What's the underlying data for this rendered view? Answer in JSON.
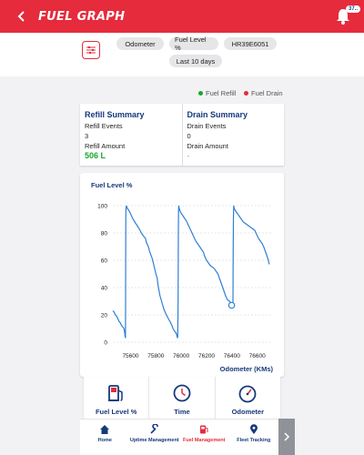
{
  "header": {
    "title": "FUEL GRAPH",
    "notification_count": "37..",
    "color": "#e52b3c"
  },
  "filters": {
    "chips": [
      "Odometer",
      "Fuel Level %",
      "HR39E6051",
      "Last 10 days"
    ]
  },
  "legend": {
    "refill_label": "Fuel Refill",
    "refill_color": "#18a82c",
    "drain_label": "Fuel Drain",
    "drain_color": "#e52b3c"
  },
  "refill_summary": {
    "title": "Refill Summary",
    "events_label": "Refill Events",
    "events_value": "3",
    "amount_label": "Refill Amount",
    "amount_value": "506 L"
  },
  "drain_summary": {
    "title": "Drain Summary",
    "events_label": "Drain Events",
    "events_value": "0",
    "amount_label": "Drain Amount",
    "amount_value": "-"
  },
  "chart_data": {
    "type": "line",
    "title": "Fuel Level %",
    "xlabel": "Odometer (KMs)",
    "ylabel": "",
    "xlim": [
      75460,
      76710
    ],
    "ylim": [
      0,
      100
    ],
    "x_ticks": [
      75600,
      75800,
      76000,
      76200,
      76400,
      76600
    ],
    "y_ticks": [
      0,
      20,
      40,
      60,
      80,
      100
    ],
    "grid": true,
    "line_color": "#2f7fd6",
    "series": [
      {
        "x": [
          75460,
          75470,
          75480,
          75490,
          75500,
          75510,
          75520,
          75530,
          75540,
          75548,
          75552,
          75555,
          75558,
          75560,
          75562,
          75563,
          75566,
          75575,
          75590,
          75605,
          75620,
          75640,
          75655,
          75668,
          75685,
          75700,
          75718,
          75725,
          75740,
          75752,
          75768,
          75780,
          75790,
          75800,
          75810,
          75815,
          75822,
          75832,
          75848,
          75860,
          75872,
          75888,
          75900,
          75912,
          75928,
          75935,
          75948,
          75958,
          75965,
          75970,
          75972,
          75975,
          75977,
          75979,
          75980,
          75984,
          75995,
          76010,
          76025,
          76040,
          76055,
          76070,
          76085,
          76100,
          76115,
          76130,
          76145,
          76160,
          76175,
          76185,
          76200,
          76215,
          76230,
          76245,
          76260,
          76275,
          76290,
          76305,
          76320,
          76335,
          76350,
          76365,
          76380,
          76390,
          76398,
          76404,
          76408,
          76410,
          76412,
          76414,
          76418,
          76430,
          76445,
          76460,
          76475,
          76490,
          76505,
          76520,
          76535,
          76550,
          76565,
          76580,
          76595,
          76610,
          76625,
          76640,
          76655,
          76670,
          76685,
          76695
        ],
        "y": [
          23,
          22,
          20,
          19,
          17,
          15,
          14,
          12,
          11,
          10,
          8,
          6,
          4,
          3,
          80,
          96,
          100,
          98,
          96,
          93,
          90,
          87,
          85,
          83,
          80,
          78,
          76,
          73,
          70,
          66,
          62,
          58,
          54,
          50,
          47,
          43,
          39,
          34,
          29,
          25,
          22,
          19,
          17,
          15,
          12,
          10,
          8,
          7,
          5,
          3,
          4,
          28,
          80,
          96,
          100,
          98,
          95,
          93,
          91,
          89,
          86,
          83,
          80,
          77,
          74,
          72,
          70,
          68,
          66,
          63,
          60,
          58,
          56,
          55,
          54,
          52,
          50,
          46,
          42,
          38,
          34,
          31,
          30,
          29,
          27,
          26,
          28,
          60,
          90,
          100,
          98,
          96,
          94,
          92,
          90,
          88,
          87,
          86,
          85,
          84,
          83,
          82,
          79,
          76,
          74,
          72,
          69,
          65,
          61,
          57
        ]
      }
    ],
    "markers": [
      {
        "x": 76398,
        "y": 27
      }
    ]
  },
  "metric_cards": [
    {
      "label": "Fuel Level %",
      "icon": "fuel-pump-icon"
    },
    {
      "label": "Time",
      "icon": "clock-icon"
    },
    {
      "label": "Odometer",
      "icon": "speedometer-icon"
    }
  ],
  "nav": {
    "items": [
      {
        "label": "Home",
        "icon": "home-icon"
      },
      {
        "label": "Uptime Management",
        "icon": "wrench-icon"
      },
      {
        "label": "Fuel Management",
        "icon": "fuel-pump-icon"
      },
      {
        "label": "Fleet Tracking",
        "icon": "location-pin-icon"
      }
    ],
    "active_index": 2,
    "next_icon": "chevron-right-icon"
  }
}
